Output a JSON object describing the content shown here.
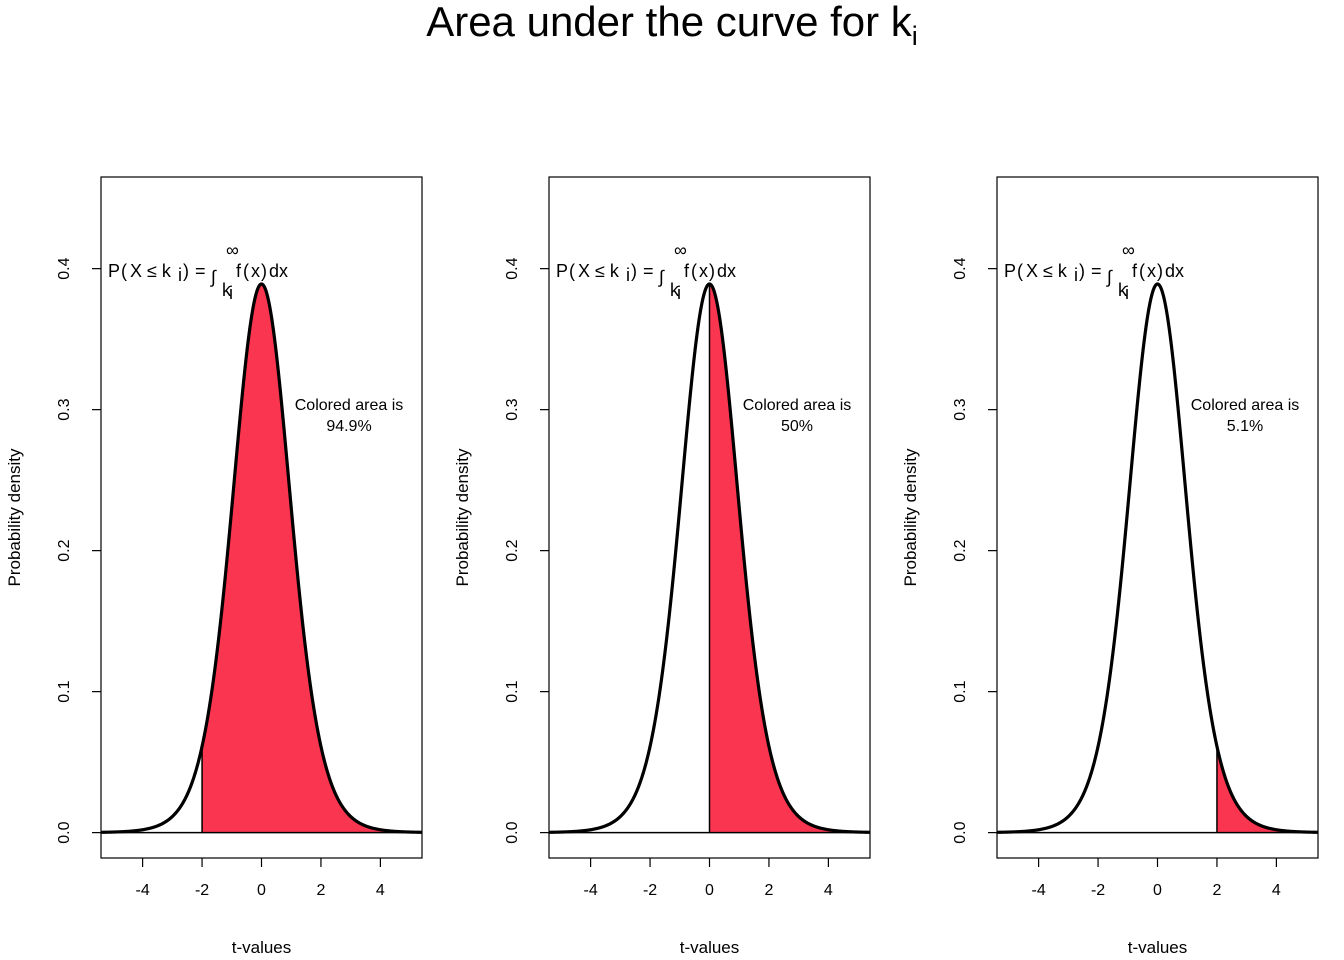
{
  "figure": {
    "title_main": "Area under the curve for k",
    "title_sub": "i"
  },
  "colors": {
    "fill": "#FA3550",
    "curve": "#000000",
    "background": "#ffffff"
  },
  "formula": {
    "lhs_open": "P",
    "paren_open": "(",
    "inner": "X ≤ k",
    "inner_sub": "i",
    "paren_close": ")",
    "eq": "=",
    "integral": "∫",
    "upper": "∞",
    "lower": "k",
    "lower_sub": "i",
    "integrand": "f",
    "integrand_paren_open": "(",
    "integrand_var": "x",
    "integrand_paren_close": ")",
    "dx": "dx"
  },
  "chart_data": [
    {
      "type": "area",
      "distribution": "t",
      "shaded_from": -2,
      "shaded_to": "inf",
      "annotation_line1": "Colored area is",
      "annotation_line2": "94.9%",
      "xlabel": "t-values",
      "ylabel": "Probability density",
      "xlim": [
        -5.4,
        5.4
      ],
      "ylim": [
        -0.018,
        0.465
      ],
      "xticks": [
        -4,
        -2,
        0,
        2,
        4
      ],
      "xtick_labels": [
        "-4",
        "-2",
        "0",
        "2",
        "4"
      ],
      "yticks": [
        0.0,
        0.1,
        0.2,
        0.3,
        0.4
      ],
      "ytick_labels": [
        "0.0",
        "0.1",
        "0.2",
        "0.3",
        "0.4"
      ]
    },
    {
      "type": "area",
      "distribution": "t",
      "shaded_from": 0,
      "shaded_to": "inf",
      "annotation_line1": "Colored area is",
      "annotation_line2": "50%",
      "xlabel": "t-values",
      "ylabel": "Probability density",
      "xlim": [
        -5.4,
        5.4
      ],
      "ylim": [
        -0.018,
        0.465
      ],
      "xticks": [
        -4,
        -2,
        0,
        2,
        4
      ],
      "xtick_labels": [
        "-4",
        "-2",
        "0",
        "2",
        "4"
      ],
      "yticks": [
        0.0,
        0.1,
        0.2,
        0.3,
        0.4
      ],
      "ytick_labels": [
        "0.0",
        "0.1",
        "0.2",
        "0.3",
        "0.4"
      ]
    },
    {
      "type": "area",
      "distribution": "t",
      "shaded_from": 2,
      "shaded_to": "inf",
      "annotation_line1": "Colored area is",
      "annotation_line2": "5.1%",
      "xlabel": "t-values",
      "ylabel": "Probability density",
      "xlim": [
        -5.4,
        5.4
      ],
      "ylim": [
        -0.018,
        0.465
      ],
      "xticks": [
        -4,
        -2,
        0,
        2,
        4
      ],
      "xtick_labels": [
        "-4",
        "-2",
        "0",
        "2",
        "4"
      ],
      "yticks": [
        0.0,
        0.1,
        0.2,
        0.3,
        0.4
      ],
      "ytick_labels": [
        "0.0",
        "0.1",
        "0.2",
        "0.3",
        "0.4"
      ]
    }
  ]
}
